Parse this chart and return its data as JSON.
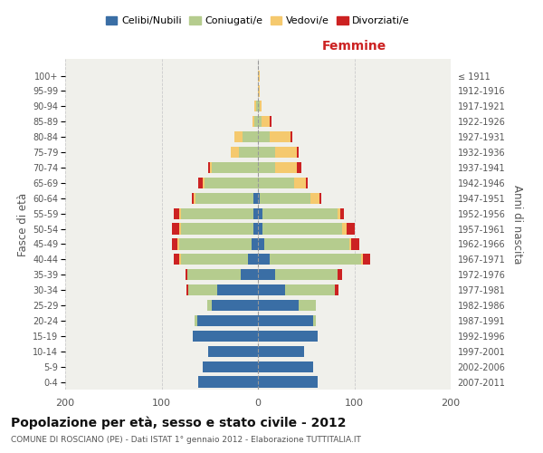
{
  "age_groups": [
    "0-4",
    "5-9",
    "10-14",
    "15-19",
    "20-24",
    "25-29",
    "30-34",
    "35-39",
    "40-44",
    "45-49",
    "50-54",
    "55-59",
    "60-64",
    "65-69",
    "70-74",
    "75-79",
    "80-84",
    "85-89",
    "90-94",
    "95-99",
    "100+"
  ],
  "birth_years": [
    "2007-2011",
    "2002-2006",
    "1997-2001",
    "1992-1996",
    "1987-1991",
    "1982-1986",
    "1977-1981",
    "1972-1976",
    "1967-1971",
    "1962-1966",
    "1957-1961",
    "1952-1956",
    "1947-1951",
    "1942-1946",
    "1937-1941",
    "1932-1936",
    "1927-1931",
    "1922-1926",
    "1917-1921",
    "1912-1916",
    "≤ 1911"
  ],
  "colors": {
    "celibi": "#3a6ea5",
    "coniugati": "#b5cc8e",
    "vedovi": "#f5c96e",
    "divorziati": "#cc2222"
  },
  "male_celibi": [
    62,
    57,
    52,
    68,
    63,
    48,
    42,
    18,
    10,
    7,
    5,
    5,
    5,
    0,
    0,
    0,
    0,
    0,
    0,
    0,
    0
  ],
  "male_coniugati": [
    0,
    0,
    0,
    0,
    3,
    5,
    30,
    55,
    70,
    75,
    75,
    75,
    60,
    55,
    48,
    20,
    16,
    4,
    2,
    0,
    0
  ],
  "male_vedovi": [
    0,
    0,
    0,
    0,
    0,
    0,
    0,
    0,
    2,
    2,
    2,
    2,
    2,
    2,
    2,
    8,
    8,
    2,
    2,
    0,
    0
  ],
  "male_divorziati": [
    0,
    0,
    0,
    0,
    0,
    0,
    2,
    2,
    5,
    5,
    7,
    5,
    2,
    5,
    2,
    0,
    0,
    0,
    0,
    0,
    0
  ],
  "female_celibi": [
    62,
    57,
    48,
    62,
    57,
    42,
    28,
    18,
    12,
    7,
    5,
    5,
    2,
    0,
    0,
    0,
    0,
    0,
    0,
    0,
    0
  ],
  "female_coniugati": [
    0,
    0,
    0,
    0,
    3,
    18,
    52,
    65,
    95,
    88,
    82,
    78,
    52,
    38,
    18,
    18,
    12,
    4,
    2,
    0,
    0
  ],
  "female_vedovi": [
    0,
    0,
    0,
    0,
    0,
    0,
    0,
    0,
    2,
    2,
    5,
    2,
    10,
    12,
    22,
    22,
    22,
    8,
    2,
    2,
    2
  ],
  "female_divorziati": [
    0,
    0,
    0,
    0,
    0,
    0,
    4,
    4,
    7,
    8,
    8,
    4,
    2,
    2,
    5,
    2,
    2,
    2,
    0,
    0,
    0
  ],
  "xlim": 200,
  "title": "Popolazione per età, sesso e stato civile - 2012",
  "subtitle": "COMUNE DI ROSCIANO (PE) - Dati ISTAT 1° gennaio 2012 - Elaborazione TUTTITALIA.IT",
  "ylabel_left": "Fasce di età",
  "ylabel_right": "Anni di nascita",
  "xlabel_right": "Femmine",
  "bg_color": "#f0f0eb",
  "grid_color": "#cccccc"
}
